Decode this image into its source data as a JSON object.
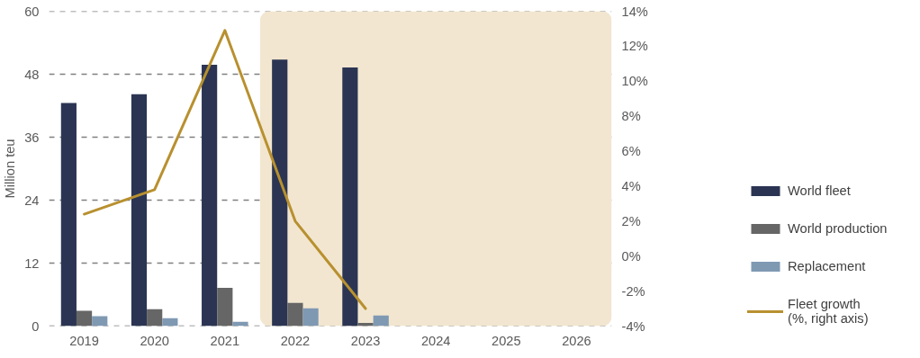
{
  "chart_data": {
    "type": "bar",
    "ylabel": "Million teu",
    "categories": [
      "2019",
      "2020",
      "2021",
      "2022",
      "2023",
      "2024",
      "2025",
      "2026"
    ],
    "series": [
      {
        "name": "World fleet",
        "color": "#2b3553",
        "values": [
          42.5,
          44.2,
          49.8,
          50.8,
          49.3,
          null,
          null,
          null
        ]
      },
      {
        "name": "World production",
        "color": "#666666",
        "values": [
          2.9,
          3.2,
          7.3,
          4.4,
          0.6,
          null,
          null,
          null
        ]
      },
      {
        "name": "Replacement",
        "color": "#7f99b3",
        "values": [
          1.9,
          1.5,
          0.8,
          3.4,
          2.0,
          null,
          null,
          null
        ]
      },
      {
        "name": "Fleet growth\n(%, right axis)",
        "type": "line",
        "axis": "y2",
        "color": "#b8902f",
        "values": [
          2.4,
          3.8,
          12.9,
          2.0,
          -3.0,
          null,
          null,
          null
        ]
      }
    ],
    "ylim": [
      0,
      60
    ],
    "yticks": [
      0,
      12,
      24,
      36,
      48,
      60
    ],
    "y2lim": [
      -4,
      14
    ],
    "y2ticks": [
      {
        "value": -4,
        "label": "-4%"
      },
      {
        "value": -2,
        "label": "-2%"
      },
      {
        "value": 0,
        "label": "0%"
      },
      {
        "value": 2,
        "label": "2%"
      },
      {
        "value": 4,
        "label": "4%"
      },
      {
        "value": 6,
        "label": "6%"
      },
      {
        "value": 8,
        "label": "8%"
      },
      {
        "value": 10,
        "label": "10%"
      },
      {
        "value": 12,
        "label": "12%"
      },
      {
        "value": 14,
        "label": "14%"
      }
    ],
    "bands": [
      {
        "axis": "x",
        "from": "2022",
        "to": "2026",
        "color": "#f2e6d0"
      }
    ],
    "grid": "y",
    "legend": "right"
  }
}
